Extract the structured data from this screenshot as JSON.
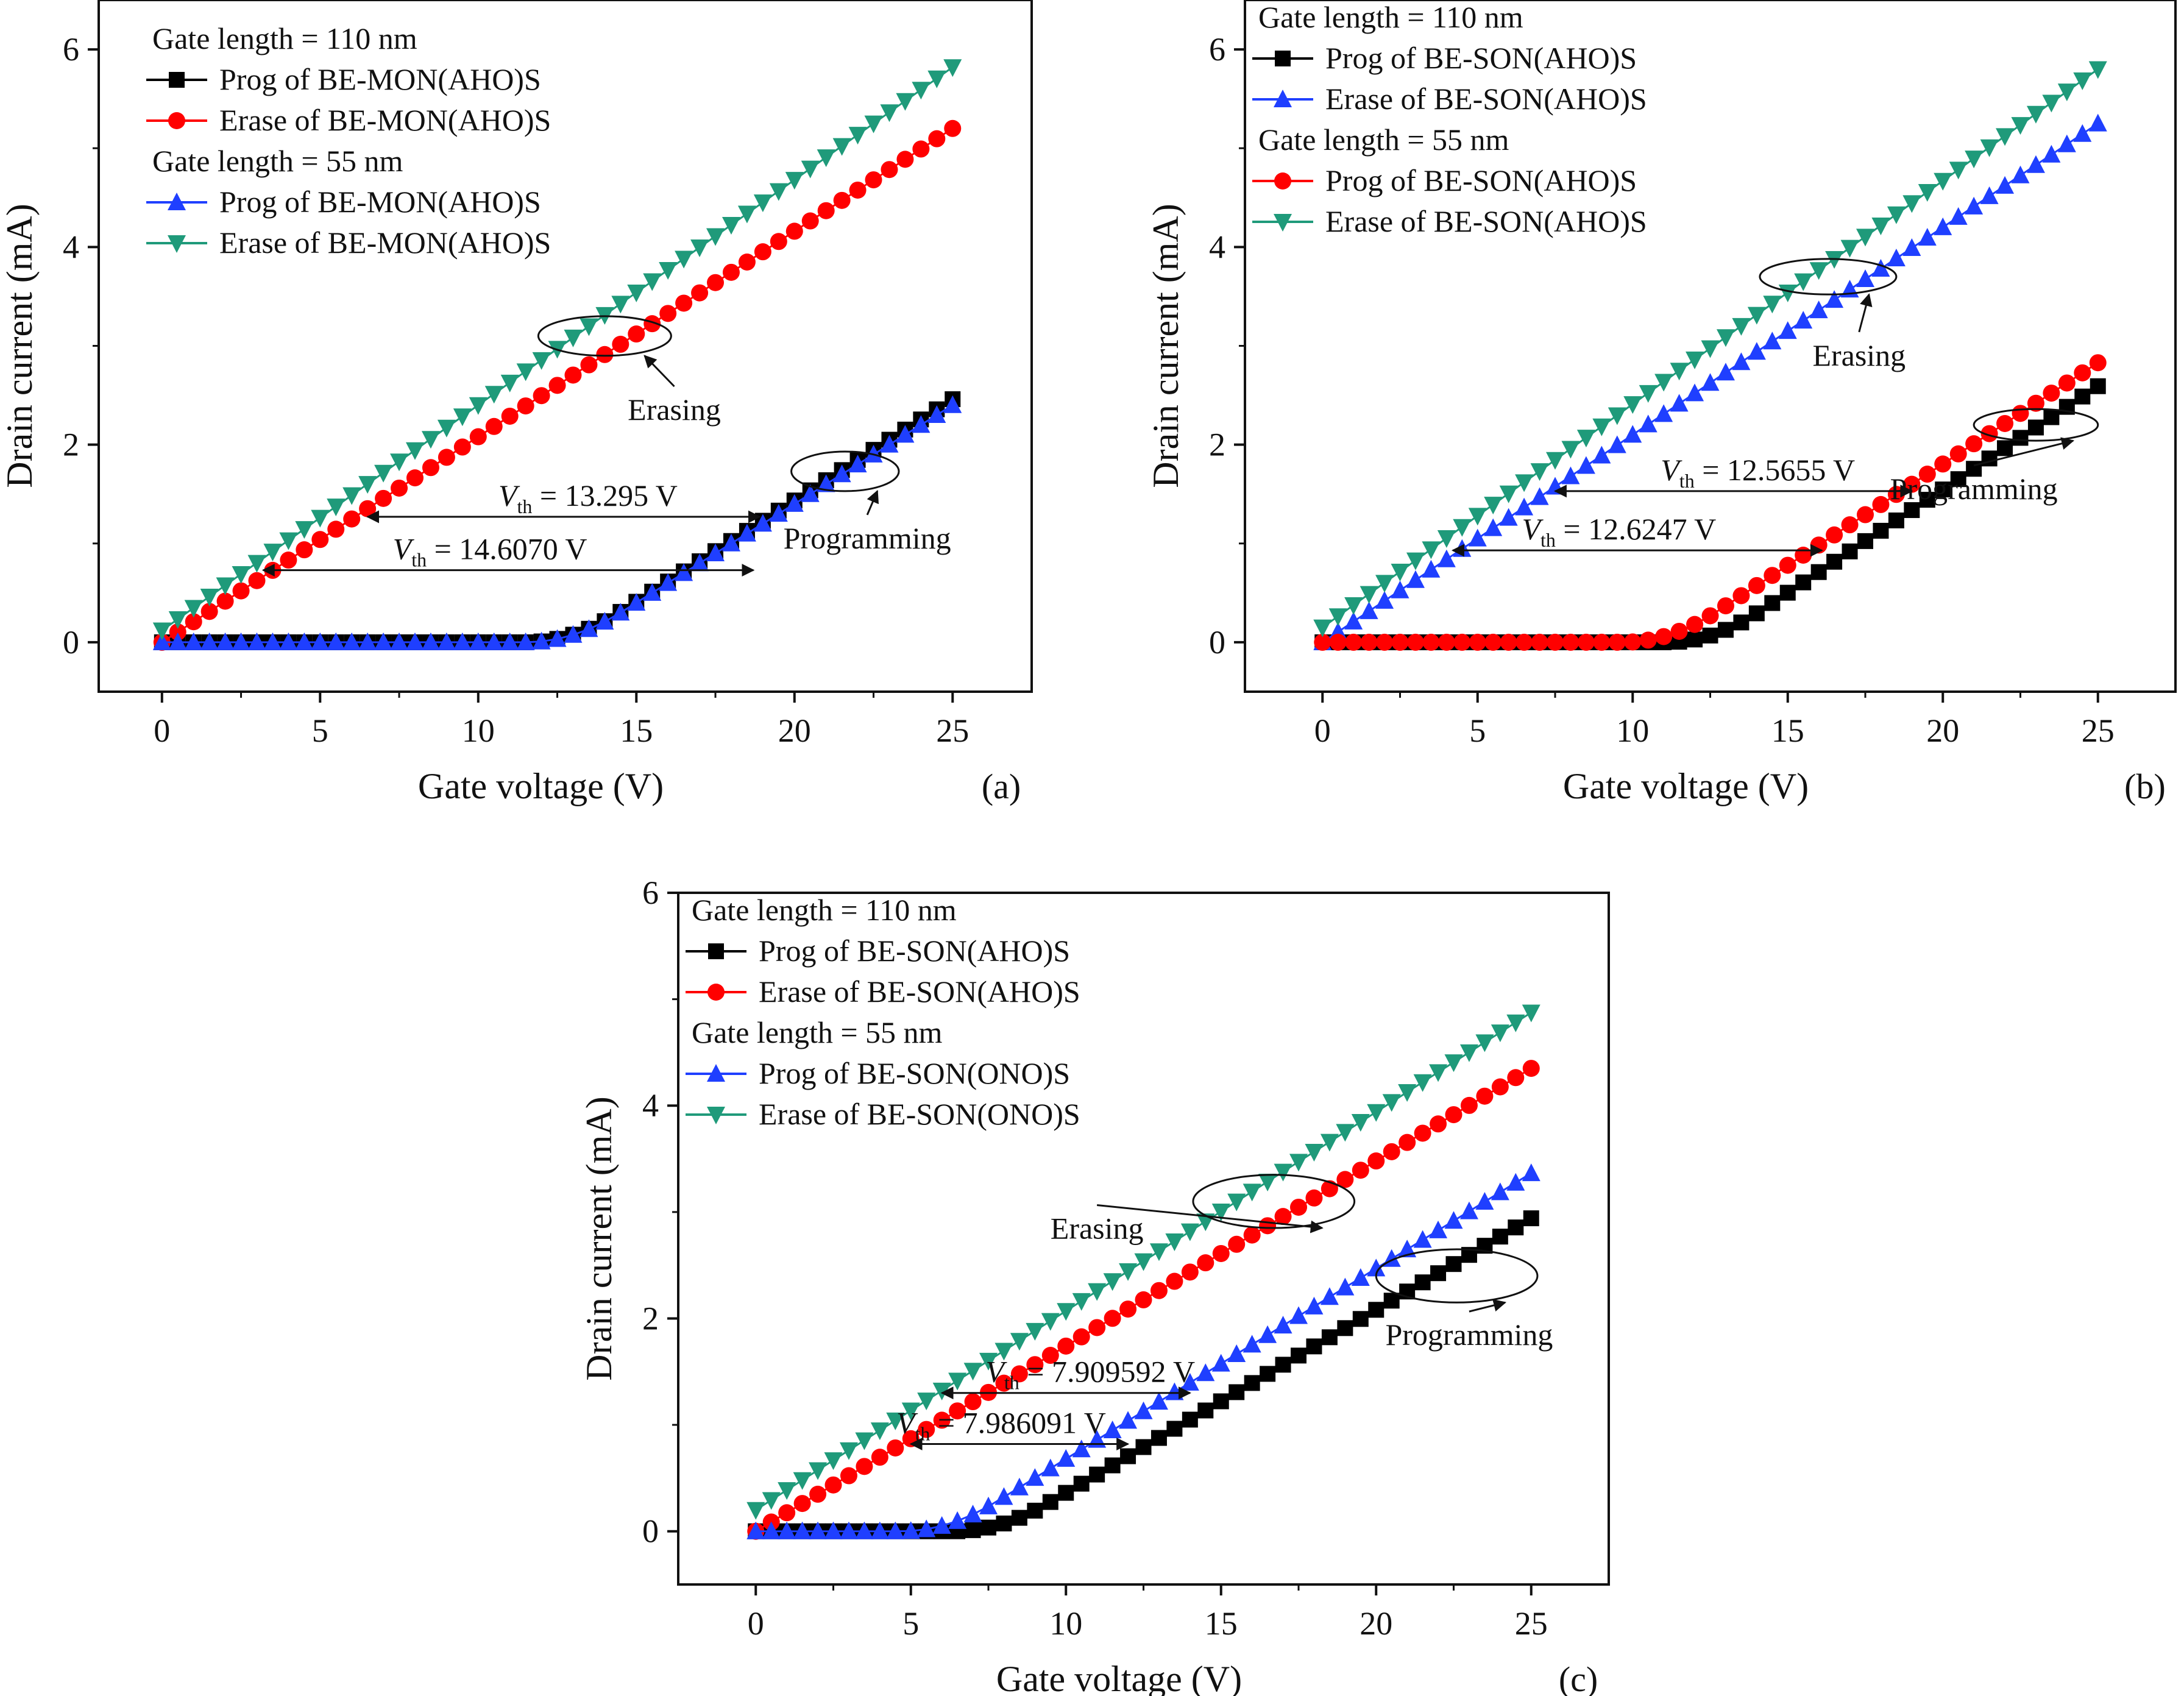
{
  "chart_data": [
    {
      "type": "scatter",
      "panel_label": "(a)",
      "xlabel": "Gate voltage (V)",
      "ylabel": "Drain current (mA)",
      "xlim": [
        -2,
        27.5
      ],
      "ylim": [
        -0.5,
        6.5
      ],
      "xticks": [
        "0",
        "5",
        "10",
        "15",
        "20",
        "25"
      ],
      "yticks": [
        "0",
        "2",
        "4",
        "6"
      ],
      "legend_groups": [
        {
          "heading": "Gate length = 110 nm",
          "series": [
            0,
            1
          ]
        },
        {
          "heading": "Gate length = 55 nm",
          "series": [
            2,
            3
          ]
        }
      ],
      "series": [
        {
          "name": "Prog of BE-MON(AHO)S",
          "color": "#000000",
          "marker": "square",
          "kind": "prog",
          "vth": 13.0,
          "slope": 0.205,
          "offset": 0.0
        },
        {
          "name": "Erase of BE-MON(AHO)S",
          "color": "#ff0000",
          "marker": "circle",
          "kind": "erase",
          "slope": 0.208,
          "offset": 0.0
        },
        {
          "name": "Prog of BE-MON(AHO)S",
          "color": "#1f3fff",
          "marker": "triangle-up",
          "kind": "prog",
          "vth": 13.0,
          "slope": 0.2,
          "offset": 0.0
        },
        {
          "name": "Erase of BE-MON(AHO)S",
          "color": "#1f9a7a",
          "marker": "triangle-down",
          "kind": "erase",
          "slope": 0.228,
          "offset": 0.12
        }
      ],
      "vth_annotations": [
        {
          "text": "= 13.295 V",
          "y": 1.27,
          "x_from": 6.5,
          "x_to": 18.9,
          "head": "both"
        },
        {
          "text": "= 14.6070 V",
          "y": 0.73,
          "x_from": 3.2,
          "x_to": 18.7,
          "head": "both"
        }
      ],
      "group_annotations": [
        {
          "text": "Erasing",
          "ellipse_cx": 14.0,
          "ellipse_cy": 3.1,
          "ellipse_rx": 2.1,
          "ellipse_ry": 0.2,
          "label_x": 16.2,
          "label_y": 2.25
        },
        {
          "text": "Programming",
          "ellipse_cx": 21.6,
          "ellipse_cy": 1.73,
          "ellipse_rx": 1.7,
          "ellipse_ry": 0.2,
          "label_x": 22.3,
          "label_y": 0.95
        }
      ]
    },
    {
      "type": "scatter",
      "panel_label": "(b)",
      "xlabel": "Gate voltage (V)",
      "ylabel": "Drain current (mA)",
      "xlim": [
        -2.5,
        27.5
      ],
      "ylim": [
        -0.5,
        6.5
      ],
      "xticks": [
        "0",
        "5",
        "10",
        "15",
        "20",
        "25"
      ],
      "yticks": [
        "0",
        "2",
        "4",
        "6"
      ],
      "legend_groups": [
        {
          "heading": "Gate length = 110 nm",
          "series": [
            0,
            1
          ]
        },
        {
          "heading": "Gate length = 55 nm",
          "series": [
            2,
            3
          ]
        }
      ],
      "series": [
        {
          "name": "Prog of BE-SON(AHO)S",
          "color": "#000000",
          "marker": "square",
          "kind": "prog",
          "vth": 12.6,
          "slope": 0.209,
          "offset": 0.0
        },
        {
          "name": "Erase of BE-SON(AHO)S",
          "color": "#1f3fff",
          "marker": "triangle-up",
          "kind": "erase",
          "slope": 0.21,
          "offset": 0.0
        },
        {
          "name": "Prog of BE-SON(AHO)S",
          "color": "#ff0000",
          "marker": "circle",
          "kind": "prog",
          "vth": 11.2,
          "slope": 0.205,
          "offset": 0.0
        },
        {
          "name": "Erase of BE-SON(AHO)S",
          "color": "#1f9a7a",
          "marker": "triangle-down",
          "kind": "erase",
          "slope": 0.226,
          "offset": 0.15
        }
      ],
      "vth_annotations": [
        {
          "text": "= 12.5655 V",
          "y": 1.53,
          "x_from": 7.5,
          "x_to": 19.0,
          "head": "both"
        },
        {
          "text": "= 12.6247 V",
          "y": 0.93,
          "x_from": 4.2,
          "x_to": 16.1,
          "head": "both"
        }
      ],
      "group_annotations": [
        {
          "text": "Erasing",
          "ellipse_cx": 16.3,
          "ellipse_cy": 3.7,
          "ellipse_rx": 2.2,
          "ellipse_ry": 0.18,
          "label_x": 17.3,
          "label_y": 2.8
        },
        {
          "text": "Programming",
          "ellipse_cx": 23.0,
          "ellipse_cy": 2.2,
          "ellipse_rx": 2.0,
          "ellipse_ry": 0.16,
          "label_x": 21.0,
          "label_y": 1.45
        }
      ]
    },
    {
      "type": "scatter",
      "panel_label": "(c)",
      "xlabel": "Gate voltage (V)",
      "ylabel": "Drain current (mA)",
      "xlim": [
        -2.5,
        27.5
      ],
      "ylim": [
        -0.5,
        6.0
      ],
      "xticks": [
        "0",
        "5",
        "10",
        "15",
        "20",
        "25"
      ],
      "yticks": [
        "0",
        "2",
        "4",
        "6"
      ],
      "legend_groups": [
        {
          "heading": "Gate length = 110 nm",
          "series": [
            0,
            1
          ]
        },
        {
          "heading": "Gate length = 55 nm",
          "series": [
            2,
            3
          ]
        }
      ],
      "series": [
        {
          "name": "Prog of BE-SON(AHO)S",
          "color": "#000000",
          "marker": "square",
          "kind": "prog",
          "vth": 7.9,
          "slope": 0.172,
          "offset": 0.0
        },
        {
          "name": "Erase of BE-SON(AHO)S",
          "color": "#ff0000",
          "marker": "circle",
          "kind": "erase",
          "slope": 0.174,
          "offset": 0.0
        },
        {
          "name": "Prog of BE-SON(ONO)S",
          "color": "#1f3fff",
          "marker": "triangle-up",
          "kind": "prog",
          "vth": 6.2,
          "slope": 0.179,
          "offset": 0.0
        },
        {
          "name": "Erase of BE-SON(ONO)S",
          "color": "#1f9a7a",
          "marker": "triangle-down",
          "kind": "erase",
          "slope": 0.187,
          "offset": 0.2
        }
      ],
      "vth_annotations": [
        {
          "text": "= 7.909592 V",
          "y": 1.3,
          "x_from": 6.0,
          "x_to": 14.0,
          "head": "both"
        },
        {
          "text": "= 7.986091 V",
          "y": 0.82,
          "x_from": 5.0,
          "x_to": 12.0,
          "head": "both"
        }
      ],
      "group_annotations": [
        {
          "text": "Erasing",
          "ellipse_cx": 16.7,
          "ellipse_cy": 3.1,
          "ellipse_rx": 2.6,
          "ellipse_ry": 0.25,
          "label_x": 11.0,
          "label_y": 2.75
        },
        {
          "text": "Programming",
          "ellipse_cx": 22.6,
          "ellipse_cy": 2.4,
          "ellipse_rx": 2.6,
          "ellipse_ry": 0.25,
          "label_x": 23.0,
          "label_y": 1.75
        }
      ]
    }
  ],
  "vth_symbol": "V",
  "vth_subscript": "th"
}
